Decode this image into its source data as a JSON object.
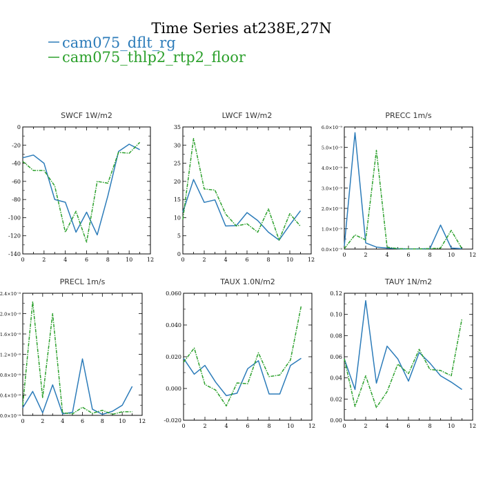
{
  "title": "Time Series at238E,27N",
  "colors": {
    "series1": "#2b7bb9",
    "series2": "#2ca02c"
  },
  "legend": [
    {
      "label": "cam075_dflt_rg",
      "color": "#2b7bb9"
    },
    {
      "label": "cam075_thlp2_rtp2_floor",
      "color": "#2ca02c"
    }
  ],
  "chart_data": [
    {
      "type": "line",
      "title": "SWCF   1W/m2",
      "x": [
        0,
        1,
        2,
        3,
        4,
        5,
        6,
        7,
        8,
        9,
        10,
        11
      ],
      "xlim": [
        0,
        12
      ],
      "xticks": [
        "0",
        "2",
        "4",
        "6",
        "8",
        "10",
        "12"
      ],
      "ylim": [
        -140,
        0
      ],
      "yticks": [
        "0",
        "-20",
        "-40",
        "-60",
        "-80",
        "-100",
        "-120",
        "-140"
      ],
      "series": [
        {
          "name": "cam075_dflt_rg",
          "values": [
            -34,
            -31,
            -40,
            -80,
            -83,
            -116,
            -94,
            -119,
            -76,
            -27,
            -19,
            -25
          ]
        },
        {
          "name": "cam075_thlp2_rtp2_floor",
          "values": [
            -38,
            -48,
            -48,
            -65,
            -116,
            -93,
            -127,
            -60,
            -62,
            -28,
            -29,
            -17
          ]
        }
      ]
    },
    {
      "type": "line",
      "title": "LWCF   1W/m2",
      "x": [
        0,
        1,
        2,
        3,
        4,
        5,
        6,
        7,
        8,
        9,
        10,
        11
      ],
      "xlim": [
        0,
        12
      ],
      "xticks": [
        "0",
        "2",
        "4",
        "6",
        "8",
        "10",
        "12"
      ],
      "ylim": [
        0,
        35
      ],
      "yticks": [
        "0",
        "5",
        "10",
        "15",
        "20",
        "25",
        "30",
        "35"
      ],
      "series": [
        {
          "name": "cam075_dflt_rg",
          "values": [
            11.5,
            20.5,
            14.2,
            14.9,
            7.7,
            7.8,
            11.4,
            9.2,
            6.0,
            3.8,
            8.0,
            11.9
          ]
        },
        {
          "name": "cam075_thlp2_rtp2_floor",
          "values": [
            9.5,
            31.8,
            17.9,
            17.6,
            11.0,
            7.7,
            8.3,
            6.0,
            12.4,
            3.8,
            11.1,
            7.6
          ]
        }
      ]
    },
    {
      "type": "line",
      "title": "PRECC   1m/s",
      "x": [
        0,
        1,
        2,
        3,
        4,
        5,
        6,
        7,
        8,
        9,
        10,
        11
      ],
      "xlim": [
        0,
        12
      ],
      "xticks": [
        "0",
        "2",
        "4",
        "6",
        "8",
        "10",
        "12"
      ],
      "ylim": [
        0,
        6e-09
      ],
      "yticks": [
        "0.0×10⁻⁹",
        "1.0×10⁻⁹",
        "2.0×10⁻⁹",
        "3.0×10⁻⁹",
        "4.0×10⁻⁹",
        "5.0×10⁻⁹",
        "6.0×10⁻⁹"
      ],
      "series": [
        {
          "name": "cam075_dflt_rg",
          "values": [
            1.5e-10,
            5.72e-09,
            3e-10,
            1e-10,
            5e-11,
            2e-11,
            1e-11,
            1e-11,
            2e-11,
            1.18e-09,
            5e-11,
            2e-11
          ]
        },
        {
          "name": "cam075_thlp2_rtp2_floor",
          "values": [
            2e-11,
            7e-10,
            4.5e-10,
            4.85e-09,
            1e-10,
            2e-11,
            1e-11,
            1e-11,
            2e-11,
            5e-11,
            9.2e-10,
            2e-11
          ]
        }
      ]
    },
    {
      "type": "line",
      "title": "PRECL   1m/s",
      "x": [
        0,
        1,
        2,
        3,
        4,
        5,
        6,
        7,
        8,
        9,
        10,
        11
      ],
      "xlim": [
        0,
        12
      ],
      "xticks": [
        "0",
        "2",
        "4",
        "6",
        "8",
        "10",
        "12"
      ],
      "ylim": [
        0,
        2.4e-08
      ],
      "yticks": [
        "0.0×10⁻⁸",
        "0.4×10⁻⁸",
        "0.8×10⁻⁸",
        "1.2×10⁻⁸",
        "1.6×10⁻⁸",
        "2.0×10⁻⁸",
        "2.4×10⁻⁸"
      ],
      "series": [
        {
          "name": "cam075_dflt_rg",
          "values": [
            1.5e-09,
            4.7e-09,
            5e-10,
            6e-09,
            3e-10,
            6e-10,
            1.11e-08,
            1.2e-09,
            2e-10,
            8e-10,
            2e-09,
            5.7e-09
          ]
        },
        {
          "name": "cam075_thlp2_rtp2_floor",
          "values": [
            2e-09,
            2.23e-08,
            3.5e-09,
            2e-08,
            5e-10,
            3e-10,
            1.6e-09,
            4e-10,
            1e-09,
            2e-10,
            7e-10,
            7e-10
          ]
        }
      ]
    },
    {
      "type": "line",
      "title": "TAUX   1.0N/m2",
      "x": [
        0,
        1,
        2,
        3,
        4,
        5,
        6,
        7,
        8,
        9,
        10,
        11
      ],
      "xlim": [
        0,
        12
      ],
      "xticks": [
        "0",
        "2",
        "4",
        "6",
        "8",
        "10",
        "12"
      ],
      "ylim": [
        -0.02,
        0.06
      ],
      "yticks": [
        "-0.020",
        "0.000",
        "0.020",
        "0.040",
        "0.060"
      ],
      "series": [
        {
          "name": "cam075_dflt_rg",
          "values": [
            0.019,
            0.009,
            0.0145,
            0.004,
            -0.0045,
            -0.003,
            0.0125,
            0.0175,
            -0.0035,
            -0.0035,
            0.0145,
            0.019
          ]
        },
        {
          "name": "cam075_thlp2_rtp2_floor",
          "values": [
            0.0165,
            0.0255,
            0.0025,
            -0.001,
            -0.011,
            0.0035,
            0.003,
            0.0225,
            0.0075,
            0.0085,
            0.018,
            0.052
          ]
        }
      ]
    },
    {
      "type": "line",
      "title": "TAUY   1N/m2",
      "x": [
        0,
        1,
        2,
        3,
        4,
        5,
        6,
        7,
        8,
        9,
        10,
        11
      ],
      "xlim": [
        0,
        12
      ],
      "xticks": [
        "0",
        "2",
        "4",
        "6",
        "8",
        "10",
        "12"
      ],
      "ylim": [
        0,
        0.12
      ],
      "yticks": [
        "0.00",
        "0.02",
        "0.04",
        "0.06",
        "0.08",
        "0.10",
        "0.12"
      ],
      "series": [
        {
          "name": "cam075_dflt_rg",
          "values": [
            0.058,
            0.029,
            0.113,
            0.035,
            0.07,
            0.058,
            0.037,
            0.064,
            0.054,
            0.042,
            0.036,
            0.029
          ]
        },
        {
          "name": "cam075_thlp2_rtp2_floor",
          "values": [
            0.058,
            0.013,
            0.042,
            0.012,
            0.027,
            0.053,
            0.044,
            0.067,
            0.048,
            0.047,
            0.042,
            0.096
          ]
        }
      ]
    }
  ]
}
